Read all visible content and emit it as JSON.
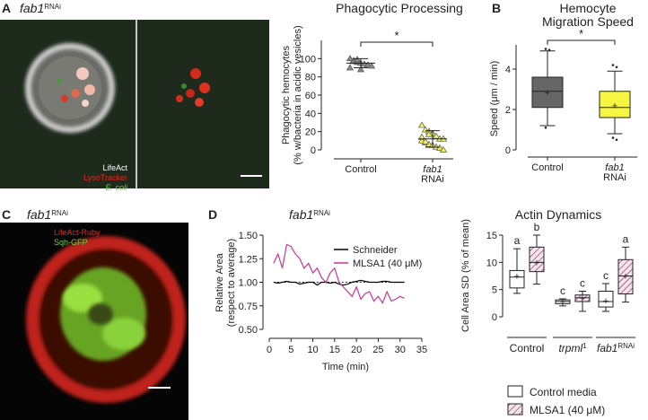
{
  "figure": {
    "panel_letters": [
      "A",
      "B",
      "C",
      "D"
    ],
    "image_a": {
      "title": "fab1",
      "title_sup": "RNAi",
      "labels": [
        "LifeAct",
        "LysoTracker",
        "E. coli"
      ]
    },
    "image_c": {
      "title": "fab1",
      "title_sup": "RNAi",
      "labels": [
        "LifeAct-Ruby",
        "Sqh-GFP"
      ]
    }
  },
  "chart_data": [
    {
      "type": "dotplot",
      "title": "Phagocytic Processing",
      "ylabel": [
        "Phagocytic hemocytes",
        "(% w/bacteria in acidic vesicles)"
      ],
      "categories": [
        "Control",
        "fab1 RNAi"
      ],
      "groups": [
        {
          "color": "#8a8a8a",
          "values": [
            100,
            98,
            96,
            95,
            94,
            93,
            92,
            90,
            97,
            99,
            88
          ],
          "mean": 95,
          "sd": 5
        },
        {
          "color": "#f2f25a",
          "values": [
            27,
            22,
            20,
            18,
            15,
            12,
            12,
            10,
            8,
            6,
            5,
            3,
            2,
            0,
            14,
            9,
            17
          ],
          "mean": 12,
          "sd": 9
        }
      ],
      "significance": "*",
      "ylim": [
        0,
        120
      ],
      "yticks": [
        0,
        20,
        40,
        60,
        80,
        100
      ]
    },
    {
      "type": "box",
      "title": [
        "Hemocyte",
        "Migration Speed"
      ],
      "ylabel": [
        "Speed (μm / min)"
      ],
      "categories": [
        "Control",
        "fab1 RNAi"
      ],
      "boxes": [
        {
          "color": "#666666",
          "min": 1.2,
          "q1": 2.1,
          "median": 2.9,
          "q3": 3.6,
          "max": 4.9,
          "mean": 2.85,
          "outliers": [
            5.0,
            4.95,
            1.1
          ]
        },
        {
          "color": "#f5f542",
          "min": 0.8,
          "q1": 1.6,
          "median": 2.1,
          "q3": 2.9,
          "max": 3.9,
          "mean": 2.2,
          "outliers": [
            4.2,
            4.1,
            0.6,
            0.5
          ]
        }
      ],
      "significance": "*",
      "ylim": [
        0,
        5.2
      ],
      "yticks": [
        0,
        2,
        4
      ]
    },
    {
      "type": "line",
      "title": "fab1",
      "title_sup": "RNAi",
      "ylabel": [
        "Relative Area",
        "(respect to average)"
      ],
      "xlabel": "Time (min)",
      "x": [
        1,
        2,
        3,
        4,
        5,
        6,
        7,
        8,
        9,
        10,
        11,
        12,
        13,
        14,
        15,
        16,
        17,
        18,
        19,
        20,
        21,
        22,
        23,
        24,
        25,
        26,
        27,
        28,
        29,
        30,
        31
      ],
      "series": [
        {
          "name": "Schneider",
          "color": "#000000",
          "values": [
            1.0,
            0.99,
            1.0,
            1.01,
            1.0,
            1.0,
            0.98,
            0.99,
            1.0,
            1.0,
            0.97,
            1.0,
            1.0,
            0.99,
            1.0,
            0.98,
            0.97,
            0.98,
            1.0,
            1.01,
            1.02,
            1.01,
            1.0,
            1.0,
            1.0,
            1.01,
            1.01,
            1.0,
            1.0,
            1.0,
            1.0
          ]
        },
        {
          "name": "MLSA1 (40 μM)",
          "color": "#cc3399",
          "values": [
            1.2,
            1.3,
            1.15,
            1.4,
            1.38,
            1.3,
            1.25,
            1.15,
            1.2,
            1.1,
            1.15,
            1.05,
            1.0,
            1.1,
            1.15,
            1.0,
            0.95,
            0.9,
            0.85,
            0.95,
            0.82,
            0.88,
            0.9,
            0.8,
            0.85,
            0.78,
            0.9,
            0.8,
            0.82,
            0.85,
            0.83
          ]
        }
      ],
      "reference_line": 1,
      "xlim": [
        0,
        35
      ],
      "xticks": [
        0,
        5,
        10,
        15,
        20,
        25,
        30,
        35
      ],
      "ylim": [
        0.5,
        1.5
      ],
      "yticks": [
        {
          "value": 0.5,
          "label": "0.50"
        },
        {
          "value": 0.75,
          "label": "0.75"
        },
        {
          "value": 1,
          "label": "1.00"
        },
        {
          "value": 1.25,
          "label": "1.25"
        },
        {
          "value": 1.5,
          "label": "1.50"
        }
      ]
    },
    {
      "type": "groupedbox",
      "title": "Actin Dynamics",
      "ylabel": [
        "Cell Area SD (% of mean)"
      ],
      "categories": [
        "Control",
        "trpml",
        "fab1"
      ],
      "category_superscripts": [
        null,
        "1",
        "RNAi"
      ],
      "series": [
        {
          "name": "Control media",
          "color": "#ffffff",
          "letters": [
            "a",
            "c",
            "c"
          ],
          "boxes": [
            {
              "min": 4.3,
              "q1": 5.3,
              "median": 7.3,
              "q3": 8.5,
              "max": 12.5,
              "mean": 7.5
            },
            {
              "min": 2.0,
              "q1": 2.4,
              "median": 2.8,
              "q3": 3.1,
              "max": 3.3,
              "mean": 2.8
            },
            {
              "min": 1.0,
              "q1": 1.8,
              "median": 2.8,
              "q3": 4.7,
              "max": 6.1,
              "mean": 3.0
            }
          ]
        },
        {
          "name": "MLSA1 (40 μM)",
          "color": "#d94f9a",
          "pattern": "hatch",
          "letters": [
            "b",
            "c",
            "a"
          ],
          "boxes": [
            {
              "min": 6.0,
              "q1": 8.3,
              "median": 10.0,
              "q3": 12.8,
              "max": 15.0,
              "mean": 10.0
            },
            {
              "min": 1.0,
              "q1": 2.8,
              "median": 3.5,
              "q3": 4.0,
              "max": 4.7,
              "mean": 3.5
            },
            {
              "min": 2.7,
              "q1": 4.2,
              "median": 7.5,
              "q3": 10.5,
              "max": 12.8,
              "mean": 7.5
            }
          ]
        }
      ],
      "ylim": [
        0,
        15
      ],
      "yticks": [
        0,
        5,
        10,
        15
      ]
    }
  ]
}
